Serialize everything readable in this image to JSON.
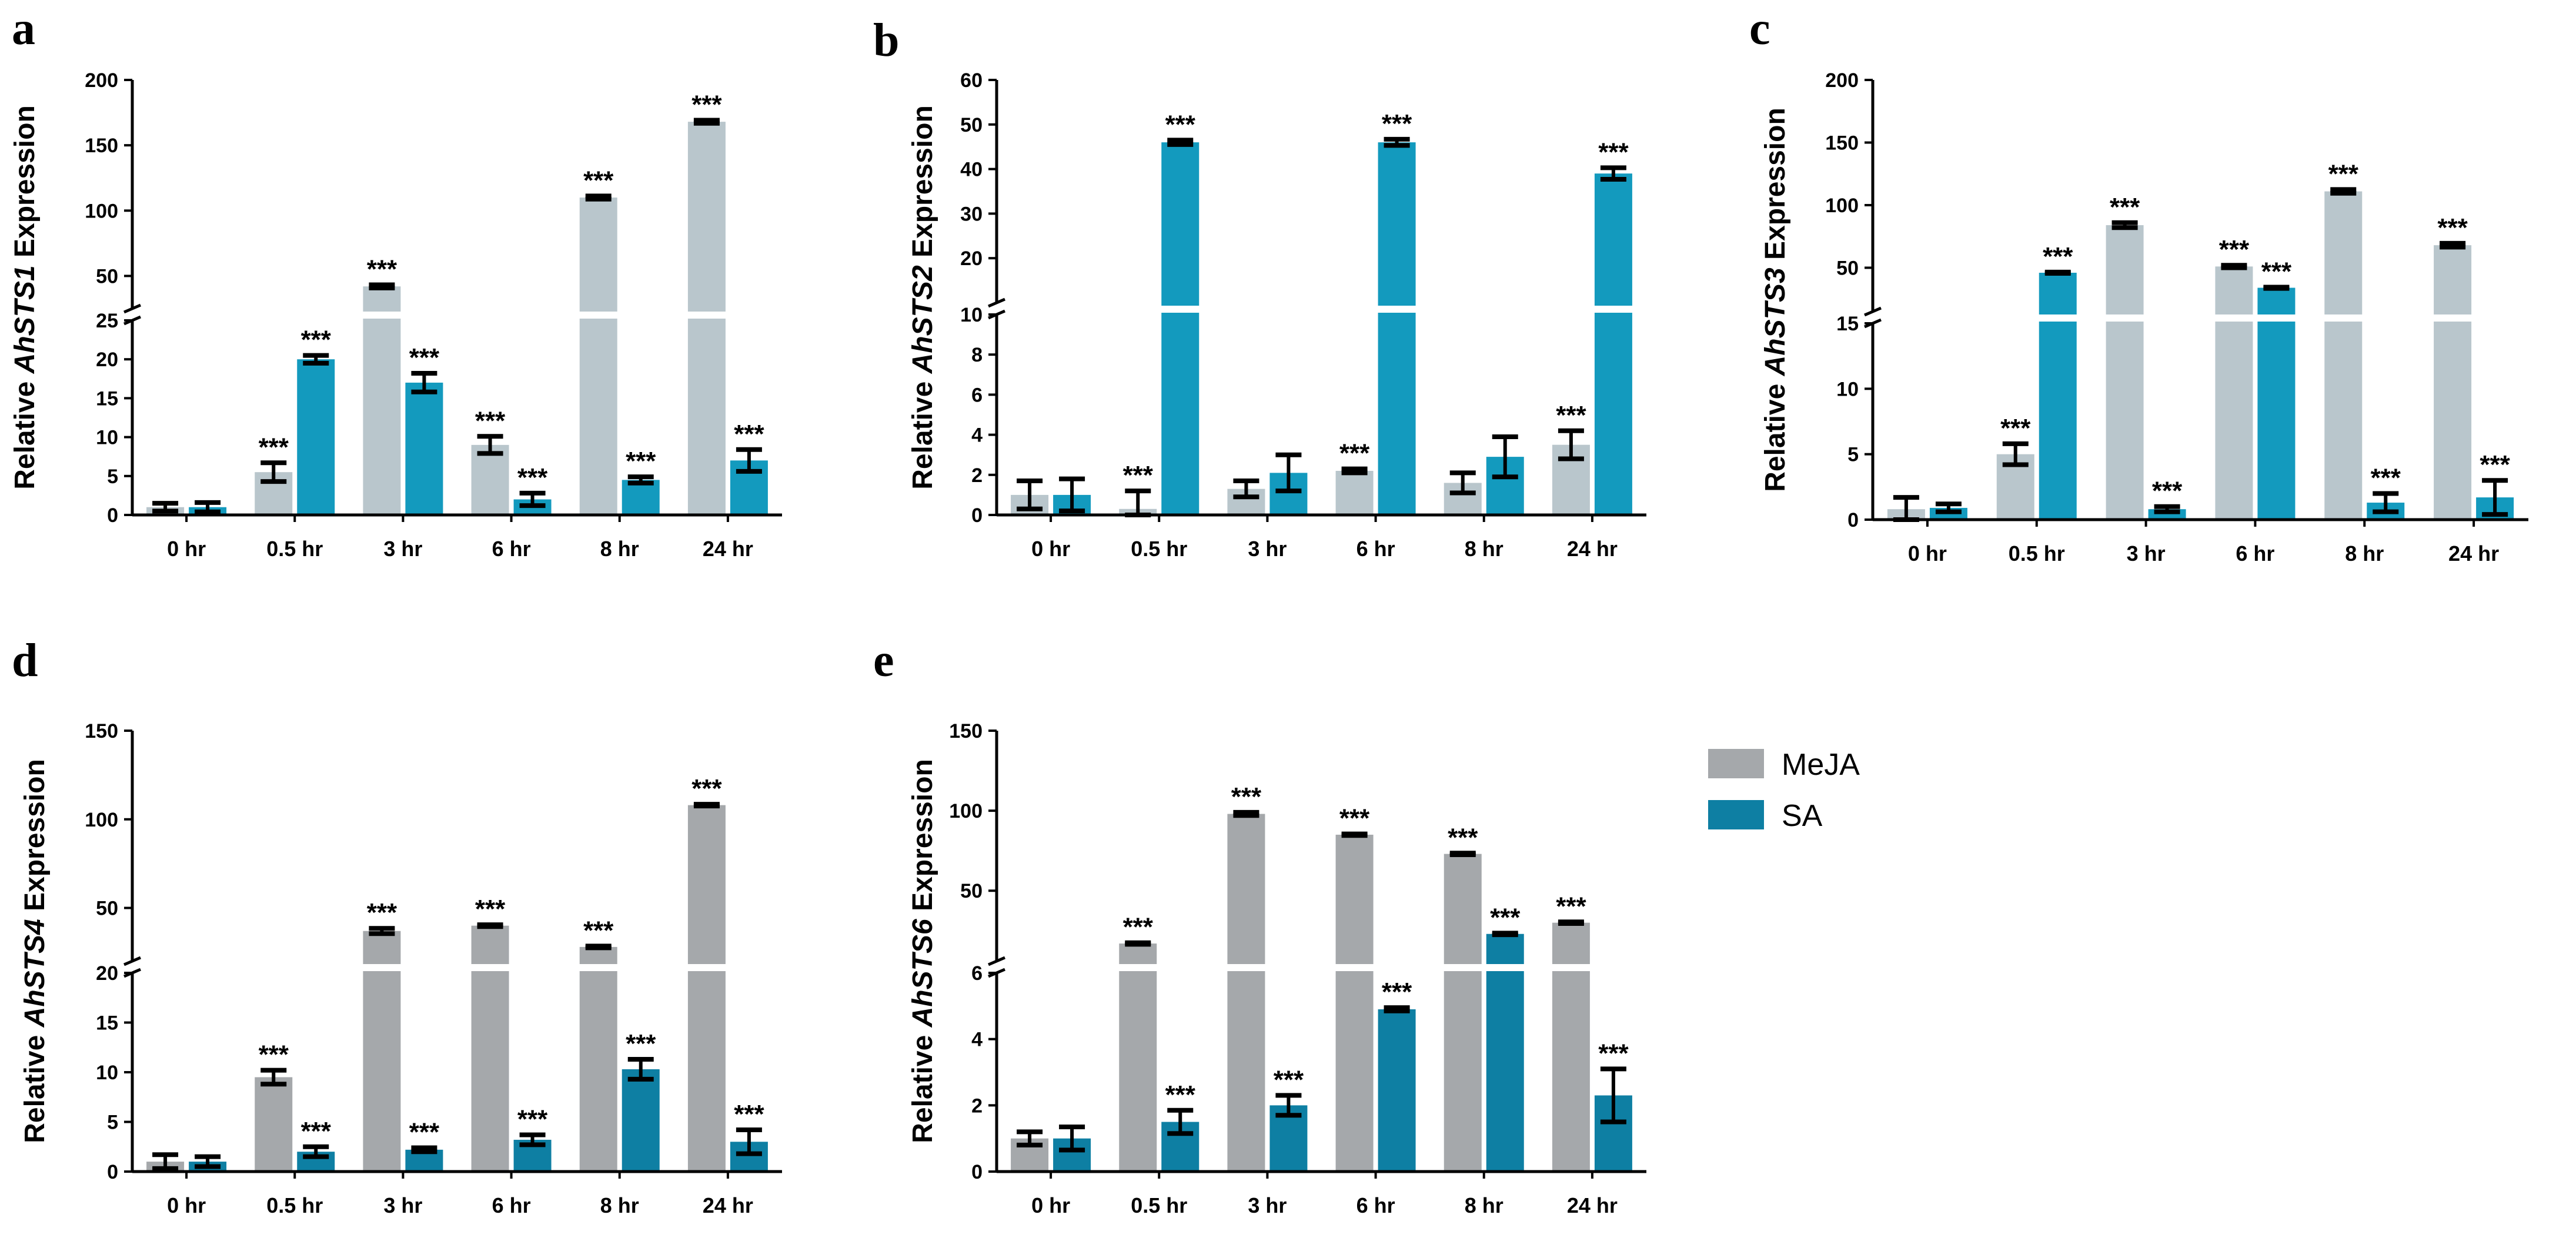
{
  "legend": {
    "items": [
      {
        "name": "MeJA",
        "color": "#a5a8ab"
      },
      {
        "name": "SA",
        "color": "#0e7fa3"
      }
    ]
  },
  "chart_data": [
    {
      "panel_label": "a",
      "type": "bar",
      "ylabel_prefix": "Relative ",
      "ylabel_gene": "AhSTS1",
      "ylabel_suffix": " Expression",
      "categories": [
        "0 hr",
        "0.5 hr",
        "3 hr",
        "6 hr",
        "8 hr",
        "24 hr"
      ],
      "series": [
        {
          "name": "MeJA",
          "color": "#b9c6cc",
          "values": [
            1,
            5.5,
            42,
            9,
            110,
            168
          ],
          "errors": [
            0.5,
            1.2,
            1.2,
            1.1,
            1.2,
            1.2
          ],
          "sig": [
            "",
            "***",
            "***",
            "***",
            "***",
            "***"
          ]
        },
        {
          "name": "SA",
          "color": "#139abe",
          "values": [
            1,
            20,
            17,
            2,
            4.5,
            7
          ],
          "errors": [
            0.6,
            0.5,
            1.2,
            0.8,
            0.4,
            1.4
          ],
          "sig": [
            "",
            "***",
            "***",
            "***",
            "***",
            "***"
          ]
        }
      ],
      "axis_segments": [
        {
          "range": [
            0,
            25
          ],
          "ticks": [
            0,
            5,
            10,
            15,
            20,
            25
          ]
        },
        {
          "range": [
            25,
            200
          ],
          "ticks": [
            50,
            100,
            150,
            200
          ]
        }
      ]
    },
    {
      "panel_label": "b",
      "type": "bar",
      "ylabel_prefix": "Relative ",
      "ylabel_gene": "AhSTS2",
      "ylabel_suffix": " Expression",
      "categories": [
        "0 hr",
        "0.5 hr",
        "3 hr",
        "6 hr",
        "8 hr",
        "24 hr"
      ],
      "series": [
        {
          "name": "MeJA",
          "color": "#b9c6cc",
          "values": [
            1,
            0.3,
            1.3,
            2.2,
            1.6,
            3.5
          ],
          "errors": [
            0.7,
            0.9,
            0.4,
            0.1,
            0.5,
            0.7
          ],
          "sig": [
            "",
            "***",
            "",
            "***",
            "",
            "***"
          ]
        },
        {
          "name": "SA",
          "color": "#139abe",
          "values": [
            1,
            46,
            2.1,
            46,
            2.9,
            39
          ],
          "errors": [
            0.8,
            0.5,
            0.9,
            0.7,
            1,
            1.3
          ],
          "sig": [
            "",
            "***",
            "",
            "***",
            "",
            "***"
          ]
        }
      ],
      "axis_segments": [
        {
          "range": [
            0,
            10
          ],
          "ticks": [
            0,
            2,
            4,
            6,
            8,
            10
          ]
        },
        {
          "range": [
            10,
            60
          ],
          "ticks": [
            20,
            30,
            40,
            50,
            60
          ]
        }
      ]
    },
    {
      "panel_label": "c",
      "type": "bar",
      "ylabel_prefix": "Relative ",
      "ylabel_gene": "AhSTS3",
      "ylabel_suffix": " Expression",
      "categories": [
        "0 hr",
        "0.5 hr",
        "3 hr",
        "6 hr",
        "8 hr",
        "24 hr"
      ],
      "series": [
        {
          "name": "MeJA",
          "color": "#b9c6cc",
          "values": [
            0.8,
            5,
            84,
            51,
            111,
            68
          ],
          "errors": [
            0.9,
            0.8,
            2,
            1,
            1.5,
            1.5
          ],
          "sig": [
            "",
            "***",
            "***",
            "***",
            "***",
            "***"
          ]
        },
        {
          "name": "SA",
          "color": "#139abe",
          "values": [
            0.9,
            46,
            0.8,
            34,
            1.3,
            1.7
          ],
          "errors": [
            0.3,
            0.5,
            0.2,
            0.5,
            0.7,
            1.3
          ],
          "sig": [
            "",
            "***",
            "***",
            "***",
            "***",
            "***"
          ]
        }
      ],
      "axis_segments": [
        {
          "range": [
            0,
            15
          ],
          "ticks": [
            0,
            5,
            10,
            15
          ]
        },
        {
          "range": [
            15,
            200
          ],
          "ticks": [
            50,
            100,
            150,
            200
          ]
        }
      ]
    },
    {
      "panel_label": "d",
      "type": "bar",
      "ylabel_prefix": "Relative ",
      "ylabel_gene": "AhSTS4",
      "ylabel_suffix": " Expression",
      "categories": [
        "0 hr",
        "0.5 hr",
        "3 hr",
        "6 hr",
        "8 hr",
        "24 hr"
      ],
      "series": [
        {
          "name": "MeJA",
          "color": "#a5a8ab",
          "values": [
            1,
            9.5,
            37,
            40,
            28,
            108
          ],
          "errors": [
            0.7,
            0.7,
            1.5,
            0.5,
            0.5,
            0.5
          ],
          "sig": [
            "",
            "***",
            "***",
            "***",
            "***",
            "***"
          ]
        },
        {
          "name": "SA",
          "color": "#0e7fa3",
          "values": [
            1,
            2,
            2.2,
            3.2,
            10.3,
            3
          ],
          "errors": [
            0.5,
            0.5,
            0.2,
            0.5,
            1,
            1.2
          ],
          "sig": [
            "",
            "***",
            "***",
            "***",
            "***",
            "***"
          ]
        }
      ],
      "axis_segments": [
        {
          "range": [
            0,
            20
          ],
          "ticks": [
            0,
            5,
            10,
            15,
            20
          ]
        },
        {
          "range": [
            20,
            150
          ],
          "ticks": [
            50,
            100,
            150
          ]
        }
      ]
    },
    {
      "panel_label": "e",
      "type": "bar",
      "ylabel_prefix": "Relative ",
      "ylabel_gene": "AhSTS6",
      "ylabel_suffix": " Expression",
      "categories": [
        "0 hr",
        "0.5 hr",
        "3 hr",
        "6 hr",
        "8 hr",
        "24 hr"
      ],
      "series": [
        {
          "name": "MeJA",
          "color": "#a5a8ab",
          "values": [
            1,
            17,
            98,
            85,
            73,
            30
          ],
          "errors": [
            0.2,
            0.5,
            1,
            0.5,
            0.5,
            0.5
          ],
          "sig": [
            "",
            "***",
            "***",
            "***",
            "***",
            "***"
          ]
        },
        {
          "name": "SA",
          "color": "#0e7fa3",
          "values": [
            1,
            1.5,
            2,
            4.9,
            23,
            2.3
          ],
          "errors": [
            0.35,
            0.35,
            0.3,
            0.05,
            0.5,
            0.8
          ],
          "sig": [
            "",
            "***",
            "***",
            "***",
            "***",
            "***"
          ]
        }
      ],
      "axis_segments": [
        {
          "range": [
            0,
            6
          ],
          "ticks": [
            0,
            2,
            4,
            6
          ]
        },
        {
          "range": [
            6,
            150
          ],
          "ticks": [
            50,
            100,
            150
          ]
        }
      ]
    }
  ]
}
